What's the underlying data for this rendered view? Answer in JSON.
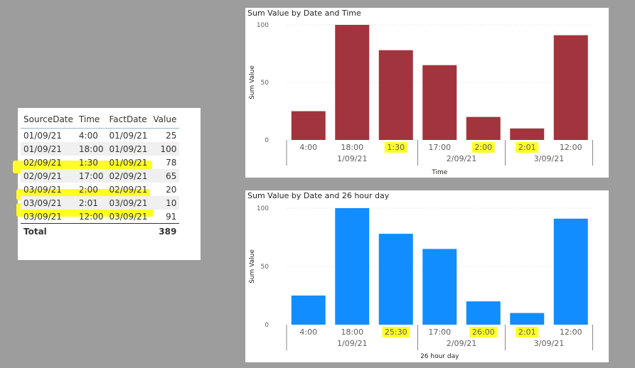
{
  "table": {
    "headers": [
      "SourceDate",
      "Time",
      "FactDate",
      "Value"
    ],
    "rows": [
      {
        "source_date": "01/09/21",
        "time": "4:00",
        "fact_date": "01/09/21",
        "value": "25",
        "highlight": false
      },
      {
        "source_date": "01/09/21",
        "time": "18:00",
        "fact_date": "01/09/21",
        "value": "100",
        "highlight": false
      },
      {
        "source_date": "02/09/21",
        "time": "1:30",
        "fact_date": "01/09/21",
        "value": "78",
        "highlight": true
      },
      {
        "source_date": "02/09/21",
        "time": "17:00",
        "fact_date": "02/09/21",
        "value": "65",
        "highlight": false
      },
      {
        "source_date": "03/09/21",
        "time": "2:00",
        "fact_date": "02/09/21",
        "value": "20",
        "highlight": true
      },
      {
        "source_date": "03/09/21",
        "time": "2:01",
        "fact_date": "03/09/21",
        "value": "10",
        "highlight": true
      },
      {
        "source_date": "03/09/21",
        "time": "12:00",
        "fact_date": "03/09/21",
        "value": "91",
        "highlight": false
      }
    ],
    "total_label": "Total",
    "total_value": "389"
  },
  "chart_data": [
    {
      "type": "bar",
      "title": "Sum Value by Date and Time",
      "xlabel": "Time",
      "ylabel": "Sum Value",
      "ylim": [
        0,
        100
      ],
      "yticks": [
        "0",
        "50",
        "100"
      ],
      "color": "#a1343c",
      "categories": [
        "4:00",
        "18:00",
        "1:30",
        "17:00",
        "2:00",
        "2:01",
        "12:00"
      ],
      "values": [
        25,
        100,
        78,
        65,
        20,
        10,
        91
      ],
      "highlighted": [
        false,
        false,
        true,
        false,
        true,
        true,
        false
      ],
      "groups": [
        {
          "label": "1/09/21",
          "span": [
            0,
            2
          ]
        },
        {
          "label": "2/09/21",
          "span": [
            3,
            4
          ]
        },
        {
          "label": "3/09/21",
          "span": [
            5,
            6
          ]
        }
      ]
    },
    {
      "type": "bar",
      "title": "Sum Value by Date and 26 hour day",
      "xlabel": "26 hour day",
      "ylabel": "Sum Value",
      "ylim": [
        0,
        100
      ],
      "yticks": [
        "0",
        "50",
        "100"
      ],
      "color": "#118dff",
      "categories": [
        "4:00",
        "18:00",
        "25:30",
        "17:00",
        "26:00",
        "2:01",
        "12:00"
      ],
      "values": [
        25,
        100,
        78,
        65,
        20,
        10,
        91
      ],
      "highlighted": [
        false,
        false,
        true,
        false,
        true,
        true,
        false
      ],
      "groups": [
        {
          "label": "1/09/21",
          "span": [
            0,
            2
          ]
        },
        {
          "label": "2/09/21",
          "span": [
            3,
            4
          ]
        },
        {
          "label": "3/09/21",
          "span": [
            5,
            6
          ]
        }
      ]
    }
  ]
}
